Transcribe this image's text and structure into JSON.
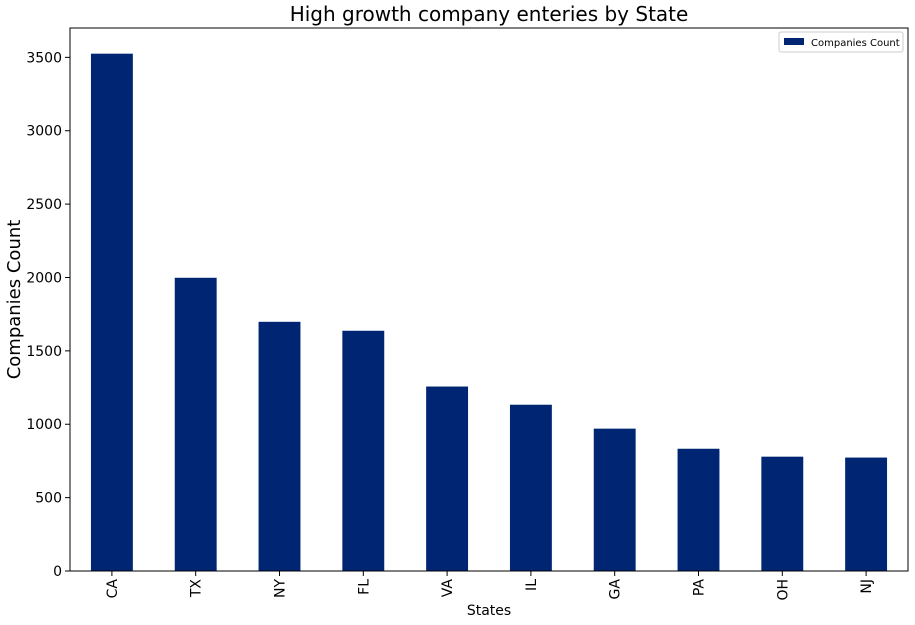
{
  "chart_data": {
    "type": "bar",
    "title": "High growth company enteries by State",
    "xlabel": "States",
    "ylabel": "Companies Count",
    "categories": [
      "CA",
      "TX",
      "NY",
      "FL",
      "VA",
      "IL",
      "GA",
      "PA",
      "OH",
      "NJ"
    ],
    "series": [
      {
        "name": "Companies Count",
        "values": [
          3525,
          1998,
          1698,
          1637,
          1257,
          1133,
          970,
          833,
          779,
          773
        ]
      }
    ],
    "ylim": [
      0,
      3700
    ],
    "yticks": [
      0,
      500,
      1000,
      1500,
      2000,
      2500,
      3000,
      3500
    ],
    "grid": false,
    "legend_position": "upper-right",
    "colors": {
      "bar": "#002673"
    }
  }
}
